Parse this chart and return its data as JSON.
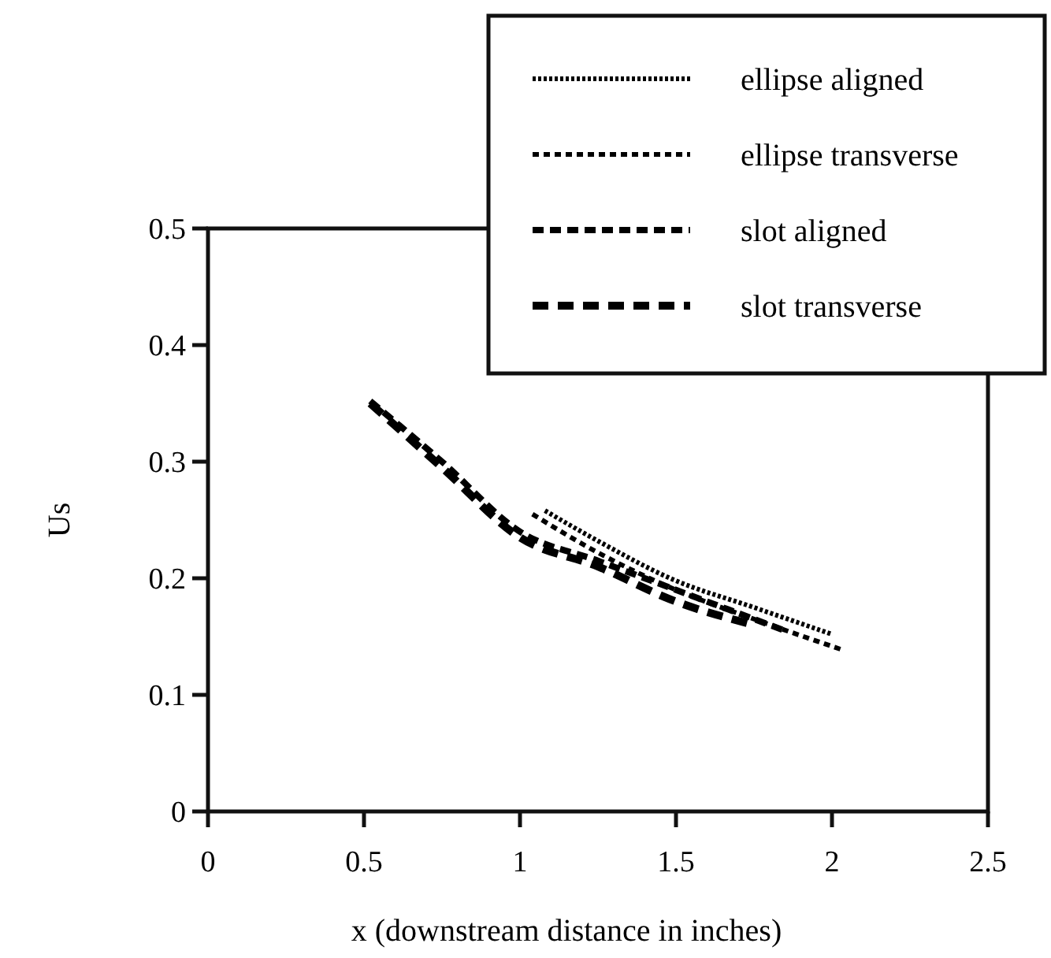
{
  "chart_data": {
    "type": "line",
    "xlabel": "x (downstream distance in inches)",
    "ylabel": "Us",
    "xlim": [
      0,
      2.5
    ],
    "ylim": [
      0,
      0.5
    ],
    "xticks": [
      0,
      0.5,
      1,
      1.5,
      2,
      2.5
    ],
    "yticks": [
      0,
      0.1,
      0.2,
      0.3,
      0.4,
      0.5
    ],
    "grid": false,
    "legend": "top right",
    "marker": "none",
    "series": [
      {
        "name": "ellipse aligned",
        "color": "#000000",
        "line_style": "dotted",
        "x": [
          1.08,
          1.25,
          1.49,
          1.75,
          2.0
        ],
        "values": [
          0.258,
          0.232,
          0.199,
          0.175,
          0.152
        ]
      },
      {
        "name": "ellipse transverse",
        "color": "#000000",
        "line_style": "dotted",
        "x": [
          1.04,
          1.25,
          1.5,
          1.75,
          2.04
        ],
        "values": [
          0.255,
          0.222,
          0.19,
          0.165,
          0.138
        ]
      },
      {
        "name": "slot aligned",
        "color": "#000000",
        "line_style": "dashed",
        "x": [
          0.52,
          0.75,
          1.0,
          1.25,
          1.5,
          1.85
        ],
        "values": [
          0.352,
          0.3,
          0.24,
          0.215,
          0.19,
          0.155
        ]
      },
      {
        "name": "slot transverse",
        "color": "#000000",
        "line_style": "dashed",
        "x": [
          0.52,
          0.75,
          1.0,
          1.25,
          1.5,
          1.75
        ],
        "values": [
          0.35,
          0.295,
          0.235,
          0.21,
          0.18,
          0.16
        ]
      }
    ]
  }
}
